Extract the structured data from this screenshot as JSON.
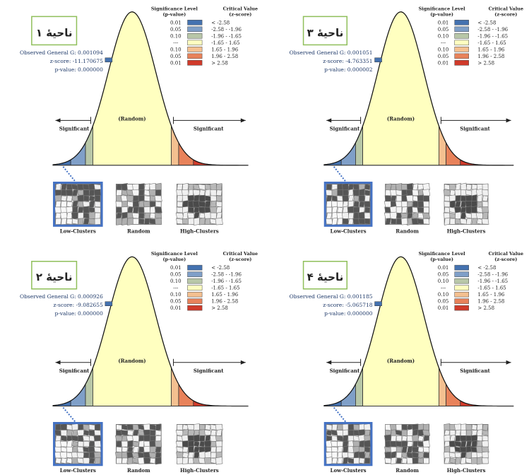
{
  "legend": {
    "sig_header_1": "Significance Level",
    "sig_header_2": "(p-value)",
    "crit_header_1": "Critical Value",
    "crit_header_2": "(z-score)",
    "rows": [
      {
        "p": "0.01",
        "z": "< -2.58",
        "color": "#4472b0"
      },
      {
        "p": "0.05",
        "z": "-2.58 - -1.96",
        "color": "#7f9fc8"
      },
      {
        "p": "0.10",
        "z": "-1.96 - -1.65",
        "color": "#b8c7a8"
      },
      {
        "p": "---",
        "z": "-1.65 - 1.65",
        "color": "#ffffc0"
      },
      {
        "p": "0.10",
        "z": "1.65 - 1.96",
        "color": "#f4c090"
      },
      {
        "p": "0.05",
        "z": "1.96 - 2.58",
        "color": "#e8825a"
      },
      {
        "p": "0.01",
        "z": "> 2.58",
        "color": "#d03a2a"
      }
    ]
  },
  "labels": {
    "random": "(Random)",
    "significant": "Significant",
    "low_clusters": "Low-Clusters",
    "random_map": "Random",
    "high_clusters": "High-Clusters",
    "observed_label": "Observed General G:",
    "z_label": "z-score:",
    "p_label": "p-value:"
  },
  "colors": {
    "curve_fill_center": "#ffffc0",
    "highlight_border": "#4472c4",
    "title_box_border": "#8fbf5a"
  },
  "chart_data": [
    {
      "type": "area",
      "title": "ناحیهٔ ۱",
      "observed_general_g": "0.001094",
      "z_score": "-11.170675",
      "p_value": "0.000000",
      "result": "Low-Clusters"
    },
    {
      "type": "area",
      "title": "ناحیهٔ ۳",
      "observed_general_g": "0.001051",
      "z_score": "-4.763351",
      "p_value": "0.000002",
      "result": "Low-Clusters"
    },
    {
      "type": "area",
      "title": "ناحیهٔ ۲",
      "observed_general_g": "0.000926",
      "z_score": "-9.082655",
      "p_value": "0.000000",
      "result": "Low-Clusters"
    },
    {
      "type": "area",
      "title": "ناحیهٔ ۴",
      "observed_general_g": "0.001185",
      "z_score": "-5.065718",
      "p_value": "0.000000",
      "result": "Low-Clusters"
    }
  ]
}
